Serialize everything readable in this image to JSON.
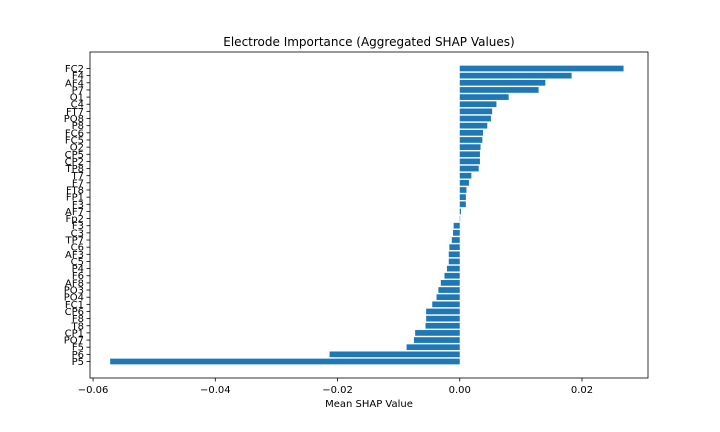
{
  "chart_data": {
    "type": "bar",
    "orientation": "horizontal",
    "title": "Electrode Importance (Aggregated SHAP Values)",
    "xlabel": "Mean SHAP Value",
    "ylabel": "",
    "xlim": [
      -0.0605,
      0.0308
    ],
    "xticks": [
      -0.06,
      -0.04,
      -0.02,
      0.0,
      0.02
    ],
    "xtick_labels": [
      "−0.06",
      "−0.04",
      "−0.02",
      "0.00",
      "0.02"
    ],
    "grid": false,
    "bar_color": "#1f77b4",
    "categories": [
      "FC2",
      "F4",
      "AF4",
      "P7",
      "O1",
      "C4",
      "FT7",
      "PO8",
      "P8",
      "FC6",
      "FC5",
      "O2",
      "CP5",
      "CP2",
      "TP8",
      "T7",
      "F7",
      "FT8",
      "FP1",
      "F3",
      "AF7",
      "Fp2",
      "F3",
      "C3",
      "TP7",
      "C6",
      "AF3",
      "C5",
      "P4",
      "F6",
      "AF8",
      "PO3",
      "PO4",
      "FC1",
      "CP6",
      "F8",
      "T8",
      "CP1",
      "PO7",
      "F5",
      "P6",
      "P5"
    ],
    "values": [
      0.0268,
      0.0183,
      0.014,
      0.0129,
      0.008,
      0.006,
      0.0053,
      0.0051,
      0.0045,
      0.0038,
      0.0037,
      0.0034,
      0.0033,
      0.0033,
      0.0031,
      0.0019,
      0.0015,
      0.0011,
      0.001,
      0.001,
      0.0002,
      0.0,
      -0.001,
      -0.0011,
      -0.0013,
      -0.0017,
      -0.0018,
      -0.0018,
      -0.0021,
      -0.0025,
      -0.0031,
      -0.0035,
      -0.0038,
      -0.0045,
      -0.0055,
      -0.0055,
      -0.0056,
      -0.0073,
      -0.0075,
      -0.0087,
      -0.0213,
      -0.0572
    ]
  }
}
